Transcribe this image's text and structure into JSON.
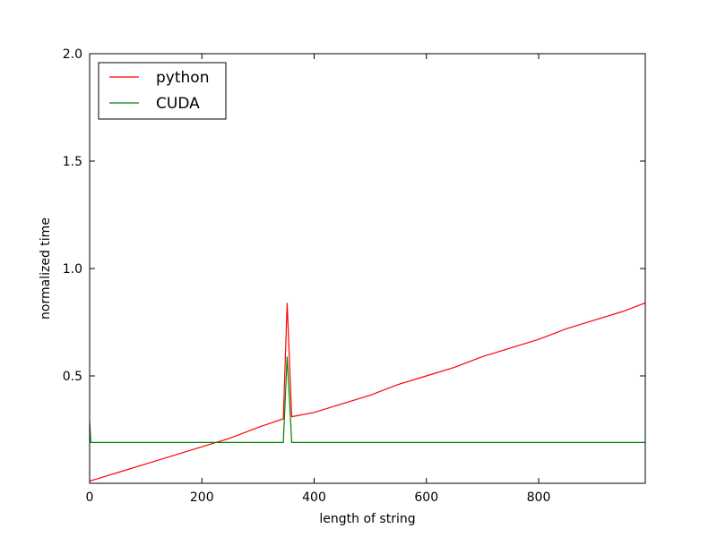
{
  "chart_data": {
    "type": "line",
    "title": "",
    "xlabel": "length of string",
    "ylabel": "normalized time",
    "xlim": [
      0,
      990
    ],
    "ylim": [
      0.0,
      2.0
    ],
    "xticks": [
      0,
      200,
      400,
      600,
      800
    ],
    "xtick_labels": [
      "0",
      "200",
      "400",
      "600",
      "800"
    ],
    "yticks": [
      0.5,
      1.0,
      1.5,
      2.0
    ],
    "ytick_labels": [
      "0.5",
      "1.0",
      "1.5",
      "2.0"
    ],
    "grid": false,
    "legend_position": "top-left",
    "series": [
      {
        "name": "python",
        "color": "#ff0000",
        "x": [
          0,
          50,
          100,
          150,
          200,
          250,
          300,
          345,
          352,
          360,
          400,
          450,
          500,
          550,
          600,
          650,
          700,
          750,
          800,
          850,
          900,
          950,
          990
        ],
        "y": [
          0.01,
          0.05,
          0.09,
          0.13,
          0.17,
          0.21,
          0.26,
          0.3,
          0.84,
          0.31,
          0.33,
          0.37,
          0.41,
          0.46,
          0.5,
          0.54,
          0.59,
          0.63,
          0.67,
          0.72,
          0.76,
          0.8,
          0.84
        ]
      },
      {
        "name": "CUDA",
        "color": "#008000",
        "x": [
          0,
          2,
          50,
          100,
          150,
          200,
          250,
          300,
          345,
          352,
          360,
          400,
          450,
          500,
          550,
          600,
          650,
          700,
          750,
          800,
          850,
          900,
          950,
          990
        ],
        "y": [
          0.29,
          0.19,
          0.19,
          0.19,
          0.19,
          0.19,
          0.19,
          0.19,
          0.19,
          0.59,
          0.19,
          0.19,
          0.19,
          0.19,
          0.19,
          0.19,
          0.19,
          0.19,
          0.19,
          0.19,
          0.19,
          0.19,
          0.19,
          0.19
        ]
      }
    ]
  }
}
